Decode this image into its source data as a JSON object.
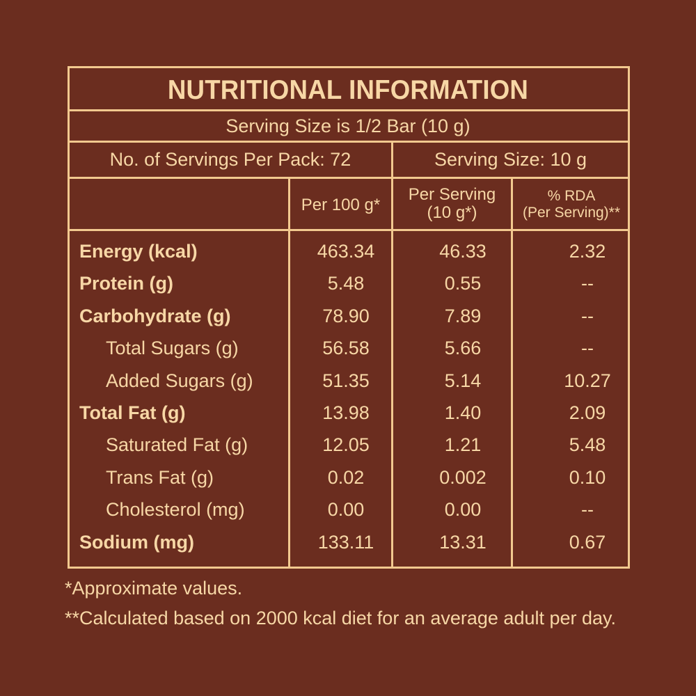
{
  "title": "NUTRITIONAL INFORMATION",
  "subtitle": "Serving Size is 1/2 Bar (10 g)",
  "servings_per_pack": "No. of Servings Per Pack: 72",
  "serving_size": "Serving Size: 10 g",
  "columns": {
    "per100": "Per 100 g*",
    "per_serving_line1": "Per Serving",
    "per_serving_line2": "(10 g*)",
    "rda_line1": "% RDA",
    "rda_line2": "(Per Serving)**"
  },
  "rows": [
    {
      "label": "Energy (kcal)",
      "bold": true,
      "per100": "463.34",
      "serving": "46.33",
      "rda": "2.32"
    },
    {
      "label": "Protein (g)",
      "bold": true,
      "per100": "5.48",
      "serving": "0.55",
      "rda": "--"
    },
    {
      "label": "Carbohydrate (g)",
      "bold": true,
      "per100": "78.90",
      "serving": "7.89",
      "rda": "--"
    },
    {
      "label": "Total Sugars (g)",
      "bold": false,
      "per100": "56.58",
      "serving": "5.66",
      "rda": "--"
    },
    {
      "label": "Added Sugars (g)",
      "bold": false,
      "per100": "51.35",
      "serving": "5.14",
      "rda": "10.27"
    },
    {
      "label": "Total Fat (g)",
      "bold": true,
      "per100": "13.98",
      "serving": "1.40",
      "rda": "2.09"
    },
    {
      "label": "Saturated Fat (g)",
      "bold": false,
      "per100": "12.05",
      "serving": "1.21",
      "rda": "5.48"
    },
    {
      "label": "Trans Fat (g)",
      "bold": false,
      "per100": "0.02",
      "serving": "0.002",
      "rda": "0.10"
    },
    {
      "label": "Cholesterol (mg)",
      "bold": false,
      "per100": "0.00",
      "serving": "0.00",
      "rda": "--"
    },
    {
      "label": "Sodium (mg)",
      "bold": true,
      "per100": "133.11",
      "serving": "13.31",
      "rda": "0.67"
    }
  ],
  "footnotes": {
    "approx": "*Approximate values.",
    "calc": "**Calculated based on 2000 kcal diet for an average adult per day."
  },
  "colors": {
    "background": "#6b2d1f",
    "text": "#f7d7a6",
    "border": "#f2c98f"
  }
}
